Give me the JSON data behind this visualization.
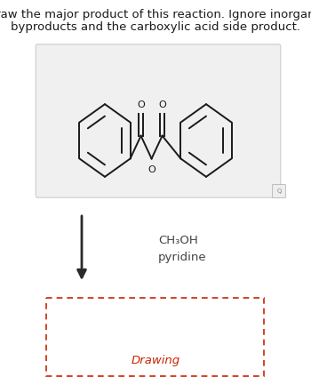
{
  "title_line1": "Draw the major product of this reaction. Ignore inorganic",
  "title_line2": "byproducts and the carboxylic acid side product.",
  "title_fontsize": 9.5,
  "title_color": "#1a1a1a",
  "reagent1": "CH₃OH",
  "reagent2": "pyridine",
  "reagent_fontsize": 9.5,
  "reagent_color": "#444444",
  "drawing_label": "Drawing",
  "drawing_label_color": "#cc2200",
  "drawing_label_fontsize": 9.5,
  "background_color": "#ffffff",
  "mol_box_fill": "#f0f0f0",
  "mol_box_edge": "#cccccc",
  "bond_color": "#1a1a1a",
  "bond_lw": 1.4,
  "arrow_color": "#2a2a2a",
  "dashed_box_color": "#cc2200",
  "lbx": 0.27,
  "lby": 0.56,
  "rbx": 0.73,
  "rby": 0.56,
  "benzene_r": 0.1
}
